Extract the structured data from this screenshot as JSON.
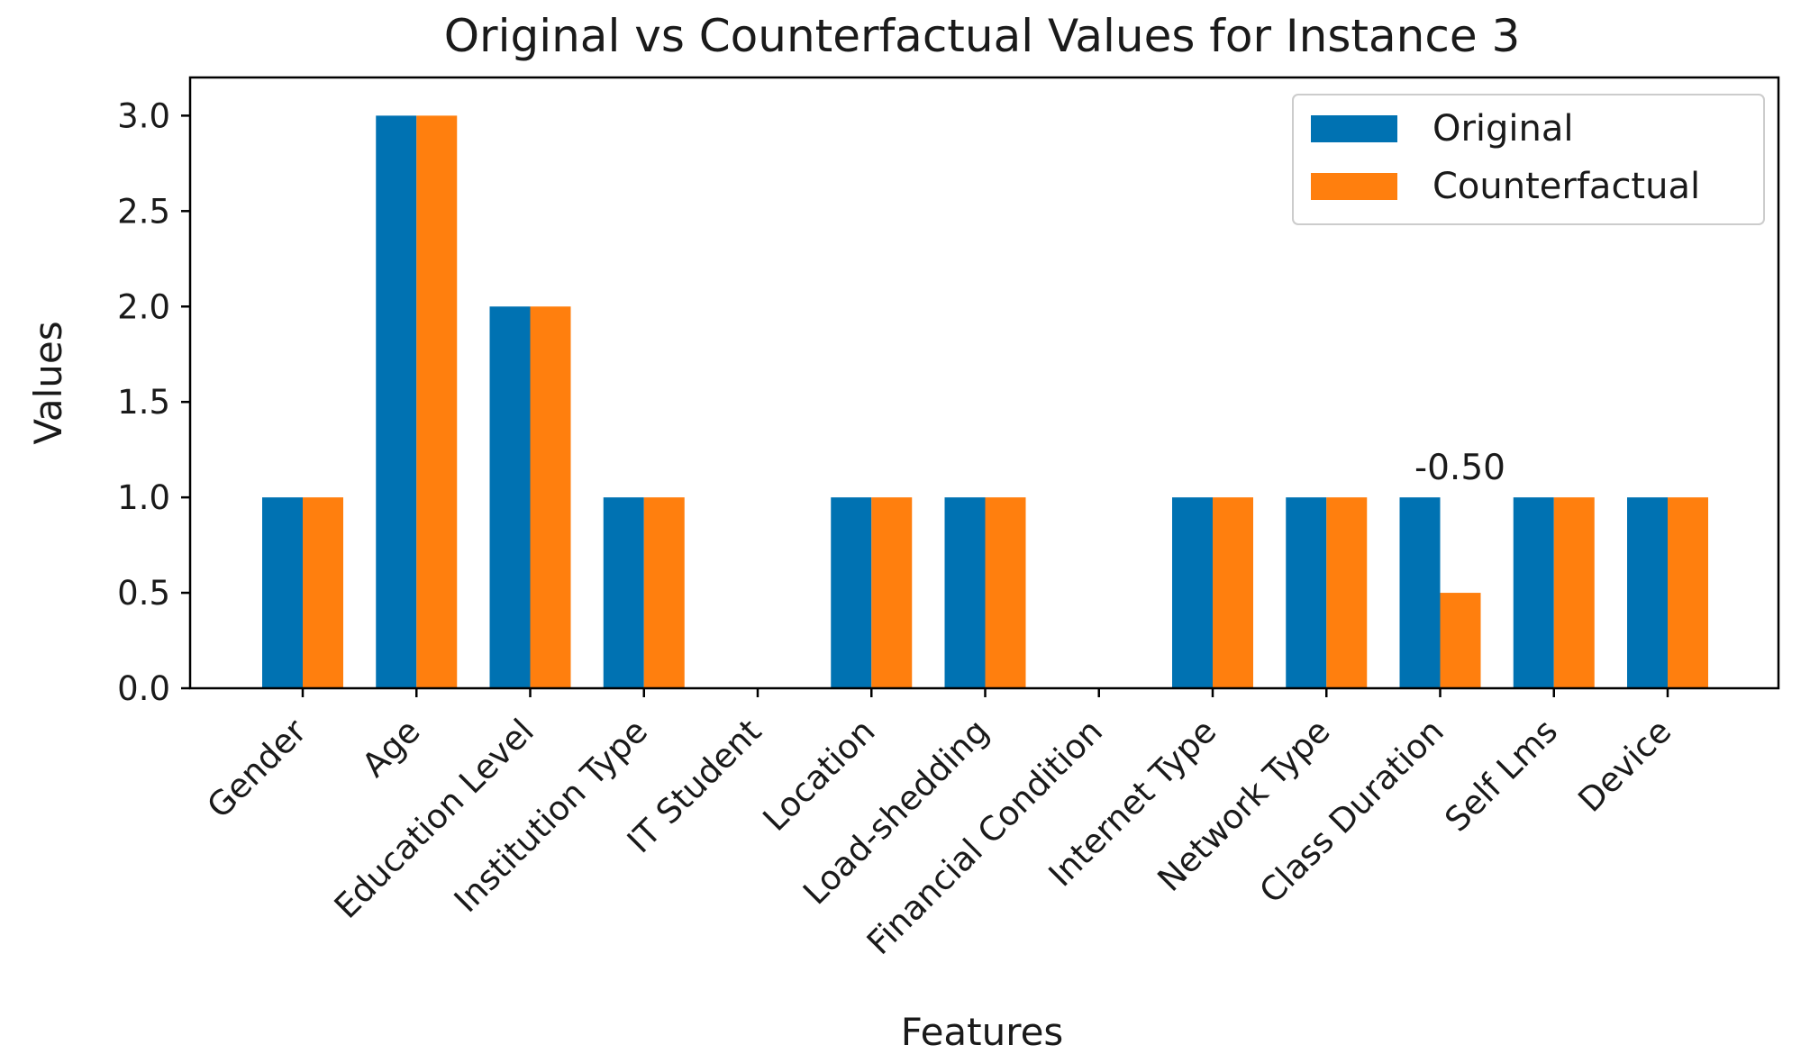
{
  "chart_data": {
    "type": "bar",
    "title": "Original vs Counterfactual Values for Instance 3",
    "xlabel": "Features",
    "ylabel": "Values",
    "ylim": [
      0,
      3.2
    ],
    "yticks": [
      "0.0",
      "0.5",
      "1.0",
      "1.5",
      "2.0",
      "2.5",
      "3.0"
    ],
    "ytick_values": [
      0,
      0.5,
      1.0,
      1.5,
      2.0,
      2.5,
      3.0
    ],
    "grid": false,
    "legend_position": "top-right",
    "categories": [
      "Gender",
      "Age",
      "Education Level",
      "Institution Type",
      "IT Student",
      "Location",
      "Load-shedding",
      "Financial Condition",
      "Internet Type",
      "Network Type",
      "Class Duration",
      "Self Lms",
      "Device"
    ],
    "series": [
      {
        "name": "Original",
        "color": "#0072B2",
        "values": [
          1,
          3,
          2,
          1,
          0,
          1,
          1,
          0,
          1,
          1,
          1,
          1,
          1
        ]
      },
      {
        "name": "Counterfactual",
        "color": "#FF7F0E",
        "values": [
          1,
          3,
          2,
          1,
          0,
          1,
          1,
          0,
          1,
          1,
          0.5,
          1,
          1
        ]
      }
    ],
    "annotations": [
      {
        "text": "-0.50",
        "category": "Class Duration",
        "y": 1.0
      }
    ]
  }
}
